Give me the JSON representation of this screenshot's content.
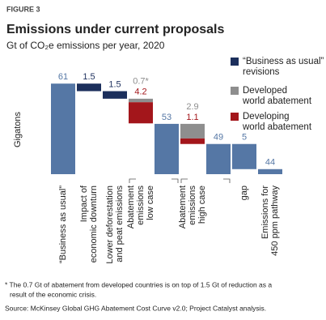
{
  "figure_label": "FIGURE 3",
  "chart_data": {
    "type": "waterfall",
    "title": "Emissions under current proposals",
    "subtitle": "Gt of CO₂e emissions per year, 2020",
    "ylabel": "Gigatons",
    "categories": [
      [
        "“Business as usual”"
      ],
      [
        "Impact of",
        "economic downturn"
      ],
      [
        "Lower deforestation",
        "and peat emissions"
      ],
      [
        "Abatement",
        "emissions",
        "low case"
      ],
      null,
      [
        "Abatement",
        "emissions",
        "high case"
      ],
      null,
      [
        "gap"
      ],
      [
        "Emissions for",
        "450 ppm pathway"
      ]
    ],
    "measure": [
      "total",
      "decrease",
      "decrease",
      "decrease",
      "total",
      "decrease",
      "total",
      "decrease",
      "total"
    ],
    "totals": {
      "color": "#5577a5",
      "values": [
        61,
        null,
        null,
        null,
        53,
        null,
        49,
        5,
        44
      ]
    },
    "series": [
      {
        "name": "“Business as usual”\nrevisions",
        "color": "#1c2f5c",
        "values": [
          null,
          1.5,
          1.5,
          null,
          null,
          null,
          null,
          null,
          null
        ]
      },
      {
        "name": "Developed\nworld abatement",
        "color": "#8e8e8e",
        "values": [
          null,
          null,
          null,
          0.7,
          null,
          2.9,
          null,
          null,
          null
        ],
        "value_labels": [
          null,
          null,
          null,
          "0.7*",
          null,
          "2.9",
          null,
          null,
          null
        ]
      },
      {
        "name": "Developing\nworld abatement",
        "color": "#a3161b",
        "values": [
          null,
          null,
          null,
          4.2,
          null,
          1.1,
          null,
          null,
          null
        ]
      }
    ],
    "ylim": [
      43,
      62
    ]
  },
  "footnote": [
    "* The 0.7 Gt of abatement from developed countries is on top of 1.5 Gt of reduction as a",
    "result of the economic crisis."
  ],
  "source": "Source: McKinsey Global GHG Abatement Cost Curve v2.0; Project Catalyst analysis."
}
